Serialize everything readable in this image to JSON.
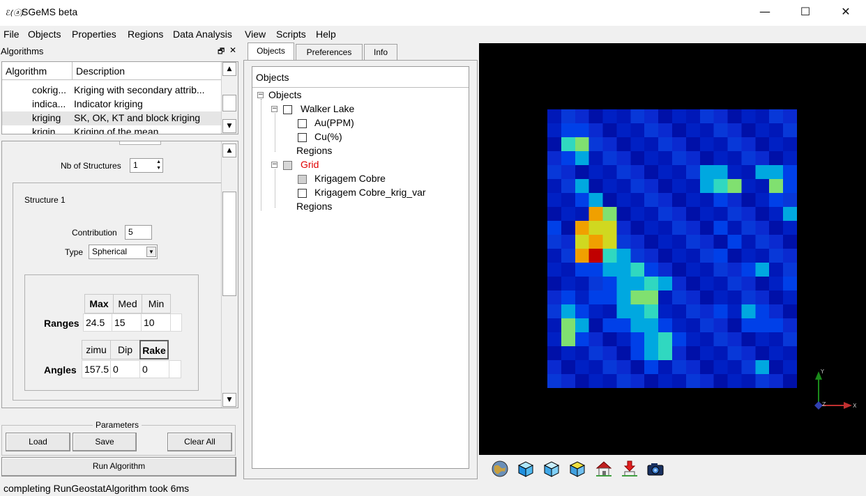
{
  "window": {
    "app_icon_text": "ℰ(ⓐ)",
    "title": "SGeMS beta",
    "minimize_glyph": "—",
    "maximize_glyph": "☐",
    "close_glyph": "✕"
  },
  "menu": {
    "items": [
      "File",
      "Objects",
      "Properties",
      "Regions",
      "Data Analysis",
      "View",
      "Scripts",
      "Help"
    ]
  },
  "algorithms_panel": {
    "title": "Algorithms",
    "float_glyph": "🗗",
    "close_glyph": "✕",
    "columns": [
      "Algorithm",
      "Description"
    ],
    "rows": [
      {
        "name": "cokrig...",
        "description": "Kriging with secondary attrib..."
      },
      {
        "name": "indica...",
        "description": "Indicator kriging"
      },
      {
        "name": "kriging",
        "description": "SK, OK, KT and block kriging"
      },
      {
        "name": "krigin...",
        "description": "Kriging of the mean"
      }
    ],
    "selected_row": "kriging"
  },
  "variogram": {
    "nb_structures_label": "Nb of Structures",
    "nb_structures_value": "1",
    "structure_title": "Structure 1",
    "contribution_label": "Contribution",
    "contribution_value": "5",
    "type_label": "Type",
    "type_value": "Spherical",
    "ranges": {
      "headers": [
        "Max",
        "Med",
        "Min"
      ],
      "row_label": "Ranges",
      "values": [
        "24.5",
        "15",
        "10"
      ]
    },
    "angles": {
      "headers": [
        "zimu",
        "Dip",
        "Rake"
      ],
      "row_label": "Angles",
      "values": [
        "157.5",
        "0",
        "0"
      ]
    }
  },
  "parameters": {
    "title": "Parameters",
    "load_label": "Load",
    "save_label": "Save",
    "clear_label": "Clear All",
    "run_label": "Run Algorithm"
  },
  "tabs": [
    "Objects",
    "Preferences",
    "Info"
  ],
  "active_tab": "Objects",
  "objects_tree": {
    "header": "Objects",
    "root": "Objects",
    "walker_lake": "Walker Lake",
    "walker_props": [
      "Au(PPM)",
      "Cu(%)"
    ],
    "regions_label": "Regions",
    "grid": "Grid",
    "grid_props": [
      "Krigagem Cobre",
      "Krigagem Cobre_krig_var"
    ],
    "grid_color": "#e00000"
  },
  "viewer": {
    "background": "#000000",
    "axes": {
      "y": "Y",
      "z": "Z",
      "x": "X"
    },
    "grid_shape": {
      "rows": 20,
      "cols": 18
    },
    "estimate_rows": [
      "111111111111111111",
      "122111111111111111",
      "145111111111111111",
      "123111111111111111",
      "111111111113311332",
      "113111111113451152",
      "112311111111211121",
      "111751111111111113",
      "217661111111211111",
      "116761111111121111",
      "117943111111211111",
      "112233421111112311",
      "111123343111111112",
      "121223551111111111",
      "132113341111213211",
      "153122332111112221",
      "152111234211111111",
      "111111234111111111",
      "111111121111111311",
      "111111111111111111"
    ],
    "color_scale": [
      "#0018b8",
      "#0040e8",
      "#00a8e0",
      "#30d8c0",
      "#80e070",
      "#d0d820",
      "#f0a000",
      "#e05010",
      "#c00000",
      "#800000"
    ]
  },
  "toolbar_icons": [
    "globe-icon",
    "cube-blue-icon",
    "cube-outline-icon",
    "cube-yellow-icon",
    "home-icon",
    "set-home-icon",
    "camera-icon"
  ],
  "status": "completing RunGeostatAlgorithm took 6ms"
}
